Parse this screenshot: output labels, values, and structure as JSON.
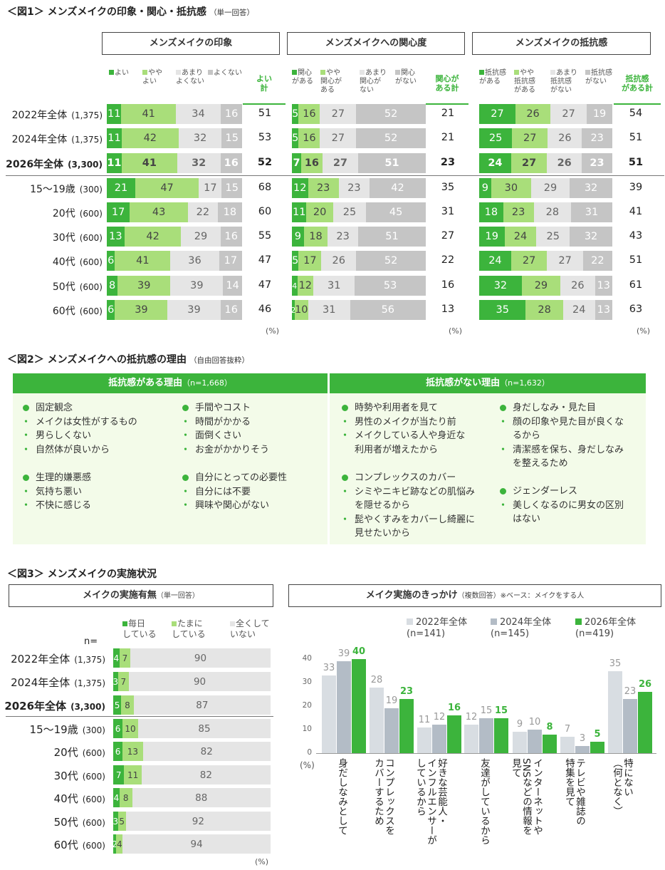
{
  "fig1": {
    "title": "＜図1＞ メンズメイクの印象・関心・抵抗感",
    "note": "（単一回答）",
    "n_label": "n=",
    "pct_label": "(%)",
    "rows": [
      {
        "label": "2022年全体",
        "n": "(1,375)",
        "bold": false
      },
      {
        "label": "2024年全体",
        "n": "(1,375)",
        "bold": false
      },
      {
        "label": "2026年全体",
        "n": "(3,300)",
        "bold": true
      },
      {
        "label": "15～19歳",
        "n": "(300)",
        "bold": false
      },
      {
        "label": "20代",
        "n": "(600)",
        "bold": false
      },
      {
        "label": "30代",
        "n": "(600)",
        "bold": false
      },
      {
        "label": "40代",
        "n": "(600)",
        "bold": false
      },
      {
        "label": "50代",
        "n": "(600)",
        "bold": false
      },
      {
        "label": "60代",
        "n": "(600)",
        "bold": false
      }
    ],
    "panels": [
      {
        "header": "メンズメイクの印象",
        "legend": [
          "よい",
          "やや\nよい",
          "あまり\nよくない",
          "よくない"
        ],
        "total_label": "よい\n計",
        "values": [
          [
            11,
            41,
            34,
            16
          ],
          [
            11,
            42,
            32,
            15
          ],
          [
            11,
            41,
            32,
            16
          ],
          [
            21,
            47,
            17,
            15
          ],
          [
            17,
            43,
            22,
            18
          ],
          [
            13,
            42,
            29,
            16
          ],
          [
            6,
            41,
            36,
            17
          ],
          [
            8,
            39,
            39,
            14
          ],
          [
            6,
            39,
            39,
            16
          ]
        ],
        "totals": [
          51,
          53,
          52,
          68,
          60,
          55,
          47,
          47,
          46
        ]
      },
      {
        "header": "メンズメイクへの関心度",
        "legend": [
          "関心\nがある",
          "やや\n関心が\nある",
          "あまり\n関心が\nない",
          "関心\nがない"
        ],
        "total_label": "関心が\nある計",
        "values": [
          [
            5,
            16,
            27,
            52
          ],
          [
            5,
            16,
            27,
            52
          ],
          [
            7,
            16,
            27,
            51
          ],
          [
            12,
            23,
            23,
            42
          ],
          [
            11,
            20,
            25,
            45
          ],
          [
            9,
            18,
            23,
            51
          ],
          [
            5,
            17,
            26,
            52
          ],
          [
            4,
            12,
            31,
            53
          ],
          [
            2,
            10,
            31,
            56
          ]
        ],
        "totals": [
          21,
          21,
          23,
          35,
          31,
          27,
          22,
          16,
          13
        ]
      },
      {
        "header": "メンズメイクの抵抗感",
        "legend": [
          "抵抗感\nがある",
          "やや\n抵抗感\nがある",
          "あまり\n抵抗感\nがない",
          "抵抗感\nがない"
        ],
        "total_label": "抵抗感\nがある計",
        "values": [
          [
            27,
            26,
            27,
            19
          ],
          [
            25,
            27,
            26,
            23
          ],
          [
            24,
            27,
            26,
            23
          ],
          [
            9,
            30,
            29,
            32
          ],
          [
            18,
            23,
            28,
            31
          ],
          [
            19,
            24,
            25,
            32
          ],
          [
            24,
            27,
            27,
            22
          ],
          [
            32,
            29,
            26,
            13
          ],
          [
            35,
            28,
            24,
            13
          ]
        ],
        "totals": [
          54,
          51,
          51,
          39,
          41,
          43,
          51,
          61,
          63
        ]
      }
    ]
  },
  "fig2": {
    "title": "＜図2＞ メンズメイクへの抵抗感の理由",
    "note": "（自由回答抜粋）",
    "left_header": "抵抗感がある理由",
    "left_n": "（n=1,668）",
    "right_header": "抵抗感がない理由",
    "right_n": "（n=1,632）",
    "groups": [
      {
        "head": "固定観念",
        "items": [
          "メイクは女性がするもの",
          "男らしくない",
          "自然体が良いから"
        ]
      },
      {
        "head": "手間やコスト",
        "items": [
          "時間がかかる",
          "面倒くさい",
          "お金がかかりそう"
        ]
      },
      {
        "head": "生理的嫌悪感",
        "items": [
          "気持ち悪い",
          "不快に感じる"
        ]
      },
      {
        "head": "自分にとっての必要性",
        "items": [
          "自分には不要",
          "興味や関心がない"
        ]
      },
      {
        "head": "時勢や利用者を見て",
        "items": [
          "男性のメイクが当たり前",
          "メイクしている人や身近な\n利用者が増えたから"
        ]
      },
      {
        "head": "身だしなみ・見た目",
        "items": [
          "顔の印象や見た目が良くな\nるから",
          "清潔感を保ち、身だしなみ\nを整えるため"
        ]
      },
      {
        "head": "コンプレックスのカバー",
        "items": [
          "シミやニキビ跡などの肌悩み\nを隠せるから",
          "髭やくすみをカバーし綺麗に\n見せたいから"
        ]
      },
      {
        "head": "ジェンダーレス",
        "items": [
          "美しくなるのに男女の区別\nはない"
        ]
      }
    ]
  },
  "fig3": {
    "title": "＜図3＞ メンズメイクの実施状況",
    "left": {
      "header": "メイクの実施有無",
      "note": "（単一回答）",
      "legend": [
        "毎日\nしている",
        "たまに\nしている",
        "全くして\nいない"
      ],
      "n_label": "n=",
      "pct_label": "(%)",
      "rows": [
        {
          "label": "2022年全体",
          "n": "(1,375)",
          "bold": false,
          "values": [
            4,
            7,
            90
          ]
        },
        {
          "label": "2024年全体",
          "n": "(1,375)",
          "bold": false,
          "values": [
            3,
            7,
            90
          ]
        },
        {
          "label": "2026年全体",
          "n": "(3,300)",
          "bold": true,
          "values": [
            5,
            8,
            87
          ]
        },
        {
          "label": "15～19歳",
          "n": "(300)",
          "bold": false,
          "values": [
            6,
            10,
            85
          ]
        },
        {
          "label": "20代",
          "n": "(600)",
          "bold": false,
          "values": [
            6,
            13,
            82
          ]
        },
        {
          "label": "30代",
          "n": "(600)",
          "bold": false,
          "values": [
            7,
            11,
            82
          ]
        },
        {
          "label": "40代",
          "n": "(600)",
          "bold": false,
          "values": [
            4,
            8,
            88
          ]
        },
        {
          "label": "50代",
          "n": "(600)",
          "bold": false,
          "values": [
            3,
            5,
            92
          ]
        },
        {
          "label": "60代",
          "n": "(600)",
          "bold": false,
          "values": [
            2,
            4,
            94
          ]
        }
      ]
    },
    "right": {
      "header": "メイク実施のきっかけ",
      "note": "（複数回答）※ベース：メイクをする人",
      "pct_label": "(%)"
    }
  },
  "chart_data": {
    "type": "bar",
    "title": "メイク実施のきっかけ",
    "categories": [
      "身だしなみとして",
      "コンプレックスを\nカバーするため",
      "好きな芸能人・\nインフルエンサーが\nしているから",
      "友達がしているから",
      "インターネットや\nSNSなどの情報を\n見て",
      "テレビや雑誌の\n特集を見て",
      "特にない\n（何となく）"
    ],
    "series": [
      {
        "name": "2022年全体\n(n=141)",
        "values": [
          33,
          28,
          11,
          12,
          9,
          7,
          35
        ]
      },
      {
        "name": "2024年全体\n(n=145)",
        "values": [
          39,
          19,
          12,
          15,
          10,
          3,
          23
        ]
      },
      {
        "name": "2026年全体\n(n=419)",
        "values": [
          40,
          23,
          16,
          15,
          8,
          5,
          26
        ]
      }
    ],
    "ylim": [
      0,
      40
    ],
    "yticks": [
      0,
      10,
      20,
      30,
      40
    ],
    "colors": [
      "#d8dde2",
      "#b3bcc6",
      "#3cb43c"
    ],
    "legend_position": "top"
  },
  "colors": {
    "accent": "#3cb43c",
    "light_green": "#a9de7a",
    "pale": "#e5e5e5",
    "grey": "#c5c5c5"
  }
}
